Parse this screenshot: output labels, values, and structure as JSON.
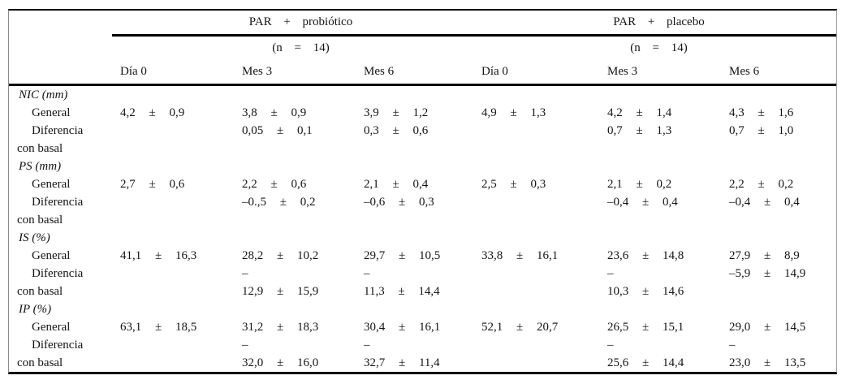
{
  "colors": {
    "rule": "#000000",
    "frame_side_border": "#8a8a8a",
    "text": "#141414",
    "background": "#ffffff"
  },
  "table": {
    "groups": [
      {
        "label": "PAR + probiótico",
        "n_label": "(n = 14)"
      },
      {
        "label": "PAR + placebo",
        "n_label": "(n = 14)"
      }
    ],
    "column_headers": [
      "Día 0",
      "Mes 3",
      "Mes 6",
      "Día 0",
      "Mes 3",
      "Mes 6"
    ],
    "rows": [
      {
        "style": "section",
        "label": "NIC (mm)",
        "cells": [
          "",
          "",
          "",
          "",
          "",
          ""
        ]
      },
      {
        "style": "indent",
        "label": "General",
        "cells": [
          "4,2 ± 0,9",
          "3,8 ± 0,9",
          "3,9 ± 1,2",
          "4,9 ± 1,3",
          "4,2 ± 1,4",
          "4,3 ± 1,6"
        ]
      },
      {
        "style": "indent",
        "label": "Diferencia",
        "cells": [
          "",
          "0,05 ± 0,1",
          "0,3 ± 0,6",
          "",
          "0,7 ± 1,3",
          "0,7 ± 1,0"
        ]
      },
      {
        "style": "plain",
        "label": "con basal",
        "cells": [
          "",
          "",
          "",
          "",
          "",
          ""
        ]
      },
      {
        "style": "section",
        "label": "PS (mm)",
        "cells": [
          "",
          "",
          "",
          "",
          "",
          ""
        ]
      },
      {
        "style": "indent",
        "label": "General",
        "cells": [
          "2,7 ± 0,6",
          "2,2 ± 0,6",
          "2,1 ± 0,4",
          "2,5 ± 0,3",
          "2,1 ± 0,2",
          "2,2 ± 0,2"
        ]
      },
      {
        "style": "indent",
        "label": "Diferencia",
        "cells": [
          "",
          "–0.,5 ± 0,2",
          "–0,6 ± 0,3",
          "",
          "–0,4 ± 0,4",
          "–0,4 ± 0,4"
        ]
      },
      {
        "style": "plain",
        "label": "con basal",
        "cells": [
          "",
          "",
          "",
          "",
          "",
          ""
        ]
      },
      {
        "style": "section",
        "label": "IS (%)",
        "cells": [
          "",
          "",
          "",
          "",
          "",
          ""
        ]
      },
      {
        "style": "indent",
        "label": "General",
        "cells": [
          "41,1 ± 16,3",
          "28,2 ± 10,2",
          "29,7 ± 10,5",
          "33,8 ± 16,1",
          "23,6 ± 14,8",
          "27,9 ± 8,9"
        ]
      },
      {
        "style": "indent",
        "label": "Diferencia",
        "cells": [
          "",
          "–",
          "–",
          "",
          "–",
          "–5,9 ± 14,9"
        ]
      },
      {
        "style": "plain",
        "label": "con basal",
        "cells": [
          "",
          "12,9 ± 15,9",
          "11,3 ± 14,4",
          "",
          "10,3 ± 14,6",
          ""
        ]
      },
      {
        "style": "section",
        "label": "IP (%)",
        "cells": [
          "",
          "",
          "",
          "",
          "",
          ""
        ]
      },
      {
        "style": "indent",
        "label": "General",
        "cells": [
          "63,1 ± 18,5",
          "31,2 ± 18,3",
          "30,4 ± 16,1",
          "52,1 ± 20,7",
          "26,5 ± 15,1",
          "29,0 ± 14,5"
        ]
      },
      {
        "style": "indent",
        "label": "Diferencia",
        "cells": [
          "",
          "–",
          "–",
          "",
          "–",
          "–"
        ]
      },
      {
        "style": "plain",
        "label": "con basal",
        "cells": [
          "",
          "32,0 ± 16,0",
          "32,7 ± 11,4",
          "",
          "25,6 ± 14,4",
          "23,0 ± 13,5"
        ]
      }
    ]
  }
}
